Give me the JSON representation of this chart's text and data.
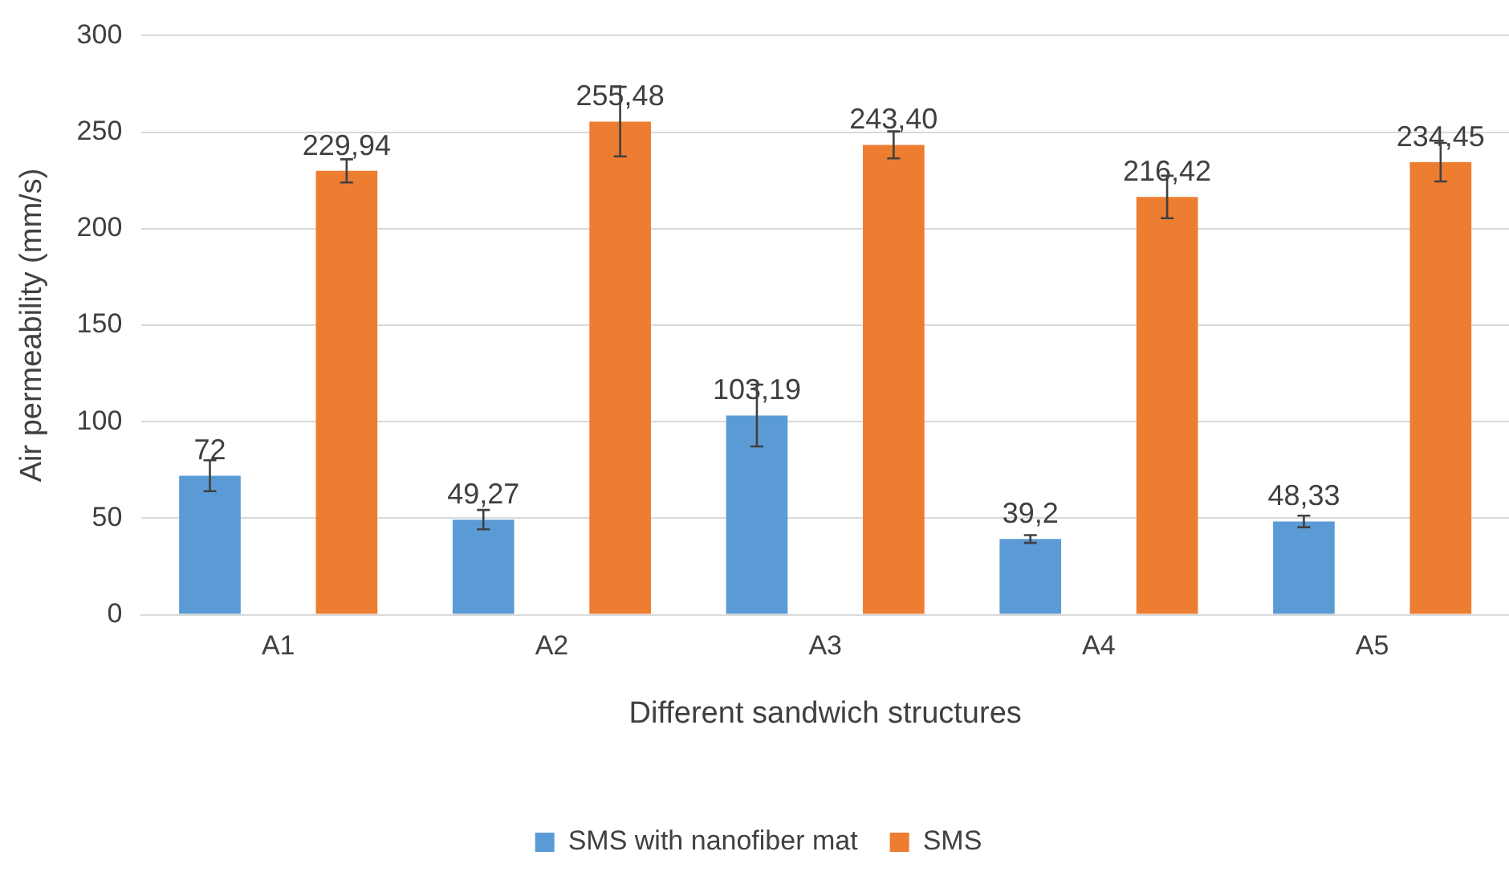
{
  "chart_data": {
    "type": "bar",
    "xlabel": "Different sandwich structures",
    "ylabel": "Air permeability (mm/s)",
    "categories": [
      "A1",
      "A2",
      "A3",
      "A4",
      "A5"
    ],
    "series": [
      {
        "name": "SMS with nanofiber mat",
        "color": "#5b9bd5",
        "values": [
          72,
          49.27,
          103.19,
          39.2,
          48.33
        ],
        "errors": [
          8,
          5,
          16,
          2,
          3
        ],
        "value_labels": [
          "72",
          "49,27",
          "103,19",
          "39,2",
          "48,33"
        ]
      },
      {
        "name": "SMS",
        "color": "#ed7d31",
        "values": [
          229.94,
          255.48,
          243.4,
          216.42,
          234.45
        ],
        "errors": [
          6,
          18,
          7,
          11,
          10
        ],
        "value_labels": [
          "229,94",
          "255,48",
          "243,40",
          "216,42",
          "234,45"
        ]
      }
    ],
    "ylim": [
      0,
      300
    ],
    "yticks": [
      0,
      50,
      100,
      150,
      200,
      250,
      300
    ],
    "grid": "y",
    "legend": "bottom"
  }
}
